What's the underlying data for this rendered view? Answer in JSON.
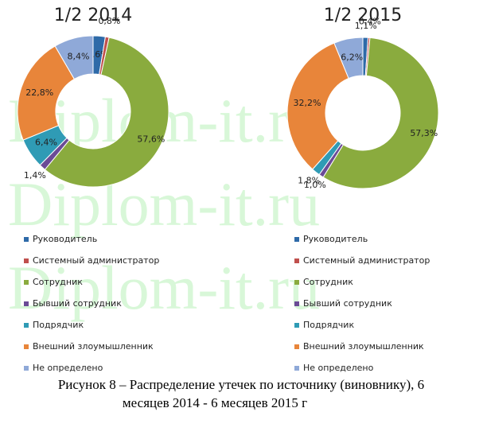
{
  "chart_data": [
    {
      "type": "pie",
      "title": "1/2 2014",
      "categories": [
        "Руководитель",
        "Системный администратор",
        "Сотрудник",
        "Бывший сотрудник",
        "Подрядчик",
        "Внешний злоумышленник",
        "Не определено"
      ],
      "values": [
        2.6,
        0.8,
        57.6,
        1.4,
        6.4,
        22.8,
        8.4
      ],
      "value_labels": [
        "2,6%",
        "0,8%",
        "57,6%",
        "1,4%",
        "6,4%",
        "22,8%",
        "8,4%"
      ],
      "colors": [
        "#2e6aa8",
        "#c0504d",
        "#8aab3e",
        "#6b4b96",
        "#2f9bb5",
        "#e8853a",
        "#8fa9d8"
      ]
    },
    {
      "type": "pie",
      "title": "1/2 2015",
      "categories": [
        "Руководитель",
        "Системный администратор",
        "Сотрудник",
        "Бывший сотрудник",
        "Подрядчик",
        "Внешний злоумышленник",
        "Не определено"
      ],
      "values": [
        1.1,
        0.4,
        57.3,
        1.0,
        1.8,
        32.2,
        6.2
      ],
      "value_labels": [
        "1,1%",
        "0,4%",
        "57,3%",
        "1,0%",
        "1,8%",
        "32,2%",
        "6,2%"
      ],
      "colors": [
        "#2e6aa8",
        "#c0504d",
        "#8aab3e",
        "#6b4b96",
        "#2f9bb5",
        "#e8853a",
        "#8fa9d8"
      ]
    }
  ],
  "watermark": "Diplom-it.ru",
  "caption": [
    "Рисунок 8 – Распределение утечек по источнику (виновнику), 6",
    "месяцев 2014 - 6 месяцев 2015 г"
  ]
}
